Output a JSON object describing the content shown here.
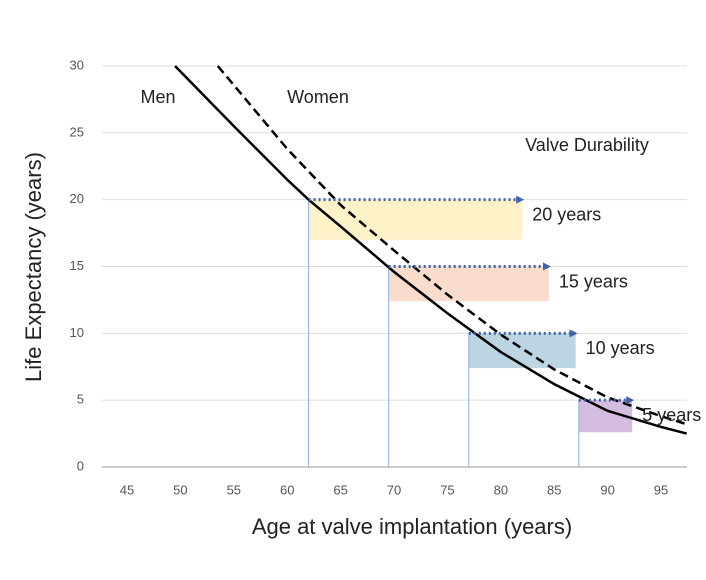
{
  "chart_data": {
    "type": "line",
    "x_label": "Age at valve implantation (years)",
    "y_label": "Life Expectancy (years)",
    "xlim": [
      42.66,
      97.43
    ],
    "ylim": [
      0,
      30
    ],
    "xticks": [
      45,
      50,
      55,
      60,
      65,
      70,
      75,
      80,
      85,
      90,
      95
    ],
    "yticks": [
      0,
      5,
      10,
      15,
      20,
      25,
      30
    ],
    "grid": true,
    "series": [
      {
        "name": "Men",
        "color": "#000000",
        "dashed": false,
        "x": [
          49.5,
          55,
          60,
          62,
          65,
          70,
          75,
          80,
          85,
          90,
          95,
          97.4
        ],
        "values": [
          30,
          25.5,
          21.5,
          20,
          18,
          14.6,
          11.5,
          8.6,
          6.2,
          4.2,
          3.0,
          2.5
        ]
      },
      {
        "name": "Women",
        "color": "#000000",
        "dashed": true,
        "x": [
          53.5,
          60,
          65,
          70,
          75,
          80,
          85,
          90,
          95,
          97.4
        ],
        "values": [
          30,
          23.8,
          19.6,
          16.2,
          12.9,
          9.9,
          7.3,
          5.2,
          3.8,
          3.2
        ]
      }
    ],
    "annotations": {
      "men": "Men",
      "women": "Women",
      "durability": "Valve Durability"
    },
    "durability": [
      {
        "label": "20 years",
        "start": 62,
        "end": 82,
        "bottom": 17,
        "top": 20,
        "color": "#fdf2c8"
      },
      {
        "label": "15 years",
        "start": 69.5,
        "end": 84.5,
        "bottom": 12.4,
        "top": 15,
        "color": "#f9dccb"
      },
      {
        "label": "10 years",
        "start": 77,
        "end": 87,
        "bottom": 7.4,
        "top": 10,
        "color": "#bcd5e3"
      },
      {
        "label": "5 years",
        "start": 87.3,
        "end": 92.3,
        "bottom": 2.6,
        "top": 5,
        "color": "#d4bde0"
      }
    ]
  }
}
